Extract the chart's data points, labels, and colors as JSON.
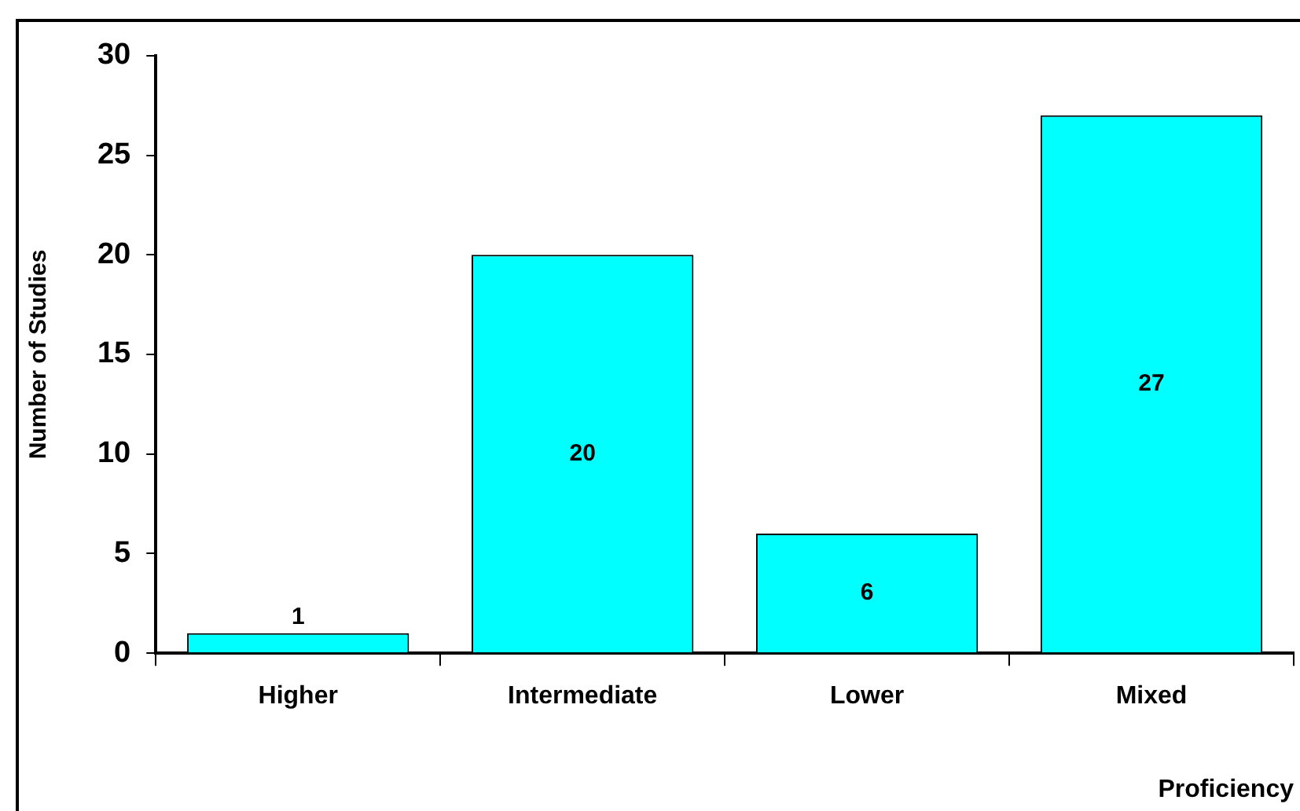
{
  "chart_data": {
    "type": "bar",
    "xlabel": "Proficiency",
    "ylabel": "Number of Studies",
    "categories": [
      "Higher",
      "Intermediate",
      "Lower",
      "Mixed"
    ],
    "values": [
      1,
      20,
      6,
      27
    ],
    "color": "#00ffff",
    "ylim": [
      0,
      30
    ],
    "yticks": [
      0,
      5,
      10,
      15,
      20,
      25,
      30
    ],
    "grid": false,
    "legend": false,
    "data_labels": true
  }
}
